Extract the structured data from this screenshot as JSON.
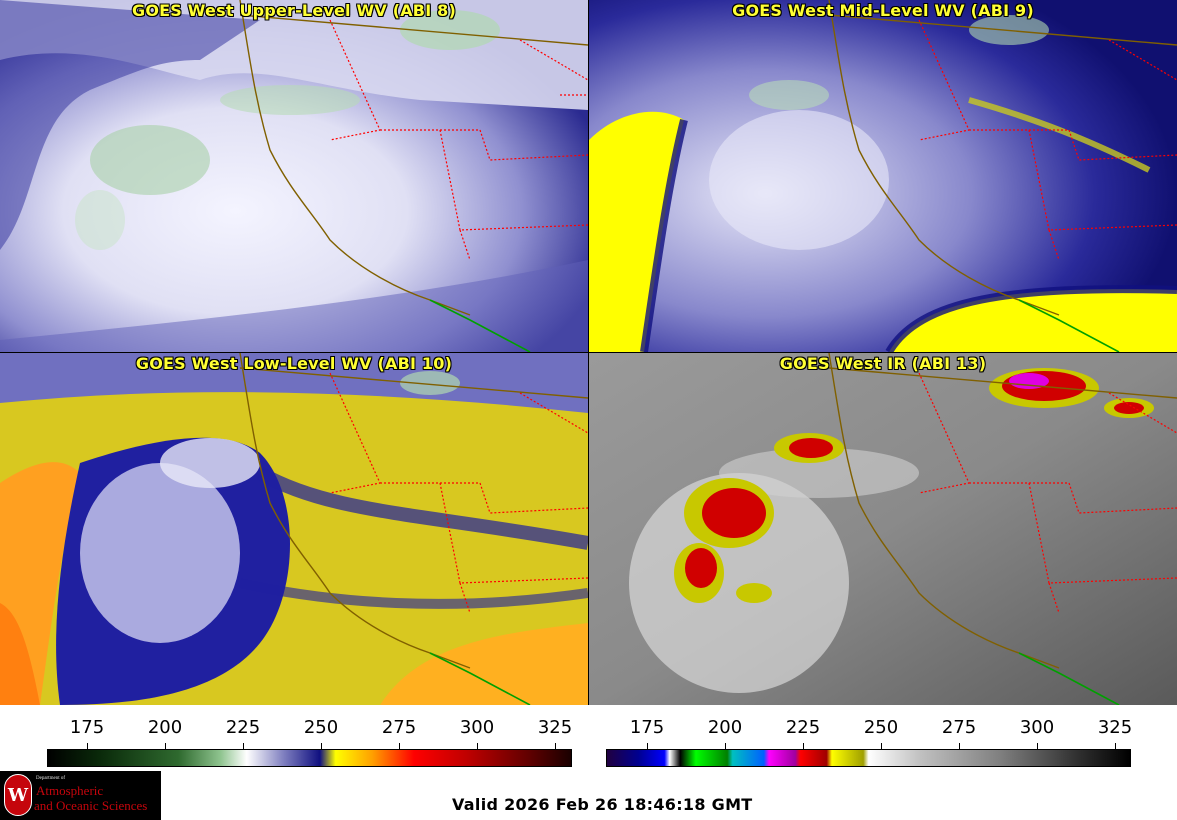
{
  "panels": [
    {
      "title": "GOES West Upper-Level WV (ABI 8)"
    },
    {
      "title": "GOES West Mid-Level WV (ABI 9)"
    },
    {
      "title": "GOES West Low-Level WV (ABI 10)"
    },
    {
      "title": "GOES West IR (ABI 13)"
    }
  ],
  "colorbar_left": {
    "ticks": [
      "175",
      "200",
      "225",
      "250",
      "275",
      "300",
      "325"
    ]
  },
  "colorbar_right": {
    "ticks": [
      "175",
      "200",
      "225",
      "250",
      "275",
      "300",
      "325"
    ]
  },
  "logo": {
    "small_text": "Department of",
    "line1": "Atmospheric",
    "line2": "and Oceanic Sciences",
    "seal_letter": "W"
  },
  "valid_time": "Valid 2026 Feb 26 18:46:18 GMT",
  "colors": {
    "title_yellow": "#ffff33",
    "state_border": "#ff0000",
    "coast": "#806000",
    "uw_red": "#c5050c"
  }
}
